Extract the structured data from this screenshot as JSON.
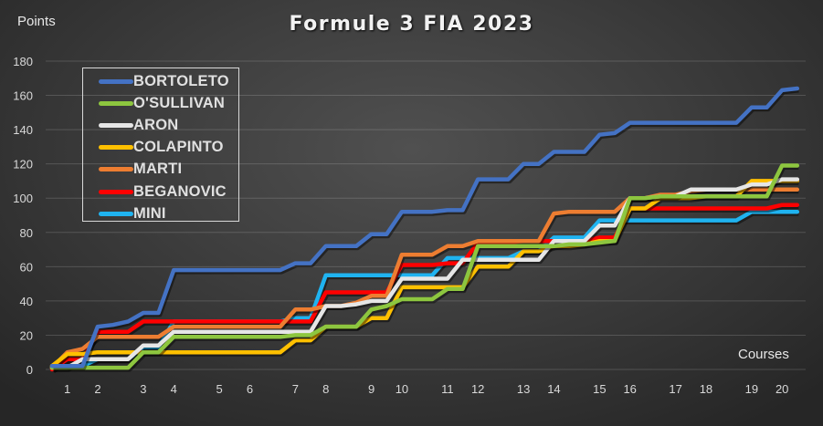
{
  "chart_data": {
    "type": "line",
    "title": "Formule 3 FIA 2023",
    "xlabel": "Courses",
    "ylabel": "Points",
    "ylim": [
      0,
      180
    ],
    "yticks": [
      0,
      20,
      40,
      60,
      80,
      100,
      120,
      140,
      160,
      180
    ],
    "grid": true,
    "legend_position": "upper-left",
    "x_tick_labels": [
      {
        "label": "1",
        "index": 1
      },
      {
        "label": "2",
        "index": 3
      },
      {
        "label": "3",
        "index": 6
      },
      {
        "label": "4",
        "index": 8
      },
      {
        "label": "5",
        "index": 11
      },
      {
        "label": "6",
        "index": 13
      },
      {
        "label": "7",
        "index": 16
      },
      {
        "label": "8",
        "index": 18
      },
      {
        "label": "9",
        "index": 21
      },
      {
        "label": "10",
        "index": 23
      },
      {
        "label": "11",
        "index": 26
      },
      {
        "label": "12",
        "index": 28
      },
      {
        "label": "13",
        "index": 31
      },
      {
        "label": "14",
        "index": 33
      },
      {
        "label": "15",
        "index": 36
      },
      {
        "label": "16",
        "index": 38
      },
      {
        "label": "17",
        "index": 41
      },
      {
        "label": "18",
        "index": 43
      },
      {
        "label": "19",
        "index": 46
      },
      {
        "label": "20",
        "index": 48
      }
    ],
    "n_points": 50,
    "series": [
      {
        "name": "BORTOLETO",
        "color": "#4472c4",
        "values": [
          2,
          2,
          2,
          25,
          26,
          28,
          33,
          33,
          58,
          58,
          58,
          58,
          58,
          58,
          58,
          58,
          62,
          62,
          72,
          72,
          72,
          79,
          79,
          92,
          92,
          92,
          93,
          93,
          111,
          111,
          111,
          120,
          120,
          127,
          127,
          127,
          137,
          138,
          144,
          144,
          144,
          144,
          144,
          144,
          144,
          144,
          153,
          153,
          163,
          164
        ]
      },
      {
        "name": "O'SULLIVAN",
        "color": "#8dc63f",
        "values": [
          1,
          1,
          1,
          1,
          1,
          1,
          10,
          10,
          19,
          19,
          19,
          19,
          19,
          19,
          19,
          19,
          20,
          20,
          25,
          25,
          25,
          35,
          37,
          41,
          41,
          41,
          47,
          47,
          72,
          72,
          72,
          72,
          72,
          72,
          73,
          73,
          74,
          75,
          100,
          100,
          101,
          101,
          101,
          101,
          101,
          101,
          101,
          101,
          119,
          119
        ]
      },
      {
        "name": "ARON",
        "color": "#e6e6e6",
        "values": [
          1,
          1,
          6,
          6,
          6,
          6,
          14,
          14,
          22,
          22,
          22,
          22,
          22,
          22,
          22,
          22,
          22,
          22,
          37,
          37,
          38,
          40,
          40,
          53,
          53,
          53,
          53,
          64,
          64,
          64,
          64,
          64,
          64,
          75,
          75,
          75,
          84,
          84,
          100,
          100,
          101,
          101,
          105,
          105,
          105,
          105,
          108,
          108,
          111,
          111
        ]
      },
      {
        "name": "COLAPINTO",
        "color": "#ffc000",
        "values": [
          2,
          9,
          9,
          10,
          10,
          10,
          10,
          10,
          10,
          10,
          10,
          10,
          10,
          10,
          10,
          10,
          17,
          17,
          25,
          25,
          25,
          30,
          30,
          48,
          48,
          48,
          48,
          48,
          60,
          60,
          60,
          69,
          69,
          72,
          72,
          73,
          75,
          75,
          94,
          94,
          100,
          100,
          100,
          101,
          101,
          101,
          110,
          110,
          110,
          110
        ]
      },
      {
        "name": "MARTI",
        "color": "#ed7d31",
        "values": [
          1,
          10,
          12,
          19,
          19,
          19,
          19,
          19,
          25,
          25,
          25,
          25,
          25,
          25,
          25,
          25,
          35,
          35,
          37,
          37,
          39,
          43,
          43,
          67,
          67,
          67,
          72,
          72,
          75,
          75,
          75,
          75,
          75,
          91,
          92,
          92,
          92,
          92,
          100,
          100,
          102,
          102,
          104,
          105,
          105,
          105,
          105,
          105,
          105,
          105
        ]
      },
      {
        "name": "BEGANOVIC",
        "color": "#ff0000",
        "values": [
          0,
          6,
          6,
          22,
          22,
          22,
          28,
          28,
          28,
          28,
          28,
          28,
          28,
          28,
          28,
          28,
          28,
          28,
          45,
          45,
          45,
          45,
          45,
          61,
          61,
          61,
          62,
          62,
          74,
          74,
          74,
          75,
          75,
          75,
          75,
          75,
          77,
          77,
          94,
          94,
          94,
          94,
          94,
          94,
          94,
          94,
          94,
          94,
          96,
          96
        ]
      },
      {
        "name": "MINI",
        "color": "#1fb3f0",
        "values": [
          2,
          2,
          2,
          6,
          6,
          6,
          13,
          13,
          28,
          28,
          28,
          28,
          28,
          28,
          28,
          28,
          30,
          30,
          55,
          55,
          55,
          55,
          55,
          55,
          55,
          55,
          65,
          65,
          65,
          65,
          65,
          69,
          69,
          77,
          77,
          77,
          87,
          87,
          87,
          87,
          87,
          87,
          87,
          87,
          87,
          87,
          92,
          92,
          92,
          92
        ]
      }
    ]
  },
  "header": {
    "title": "Formule 3 FIA 2023"
  },
  "axes": {
    "y_title": "Points",
    "x_title": "Courses"
  },
  "legend": {
    "items": [
      {
        "label": "BORTOLETO",
        "color": "#4472c4"
      },
      {
        "label": "O'SULLIVAN",
        "color": "#8dc63f"
      },
      {
        "label": "ARON",
        "color": "#e6e6e6"
      },
      {
        "label": "COLAPINTO",
        "color": "#ffc000"
      },
      {
        "label": "MARTI",
        "color": "#ed7d31"
      },
      {
        "label": "BEGANOVIC",
        "color": "#ff0000"
      },
      {
        "label": "MINI",
        "color": "#1fb3f0"
      }
    ]
  }
}
